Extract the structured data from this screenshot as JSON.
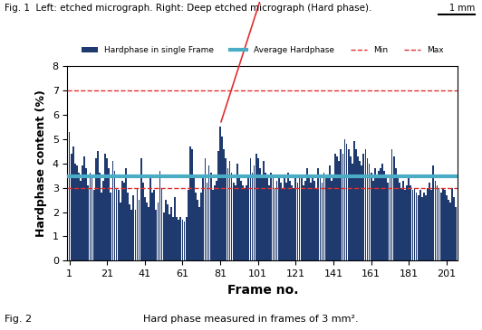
{
  "chart_data": {
    "type": "bar",
    "header": "Fig. 1  Left: etched micrograph. Right: Deep etched micrograph (Hard phase).",
    "scale_label": "1 mm",
    "figure_label": "Fig. 2",
    "caption": "Hard phase measured in frames of 3 mm².",
    "x_label": "Frame no.",
    "y_label": "Hardphase content (%)",
    "x": [
      1,
      2,
      3,
      4,
      5,
      6,
      7,
      8,
      9,
      10,
      11,
      12,
      13,
      14,
      15,
      16,
      17,
      18,
      19,
      20,
      21,
      22,
      23,
      24,
      25,
      26,
      27,
      28,
      29,
      30,
      31,
      32,
      33,
      34,
      35,
      36,
      37,
      38,
      39,
      40,
      41,
      42,
      43,
      44,
      45,
      46,
      47,
      48,
      49,
      50,
      51,
      52,
      53,
      54,
      55,
      56,
      57,
      58,
      59,
      60,
      61,
      62,
      63,
      64,
      65,
      66,
      67,
      68,
      69,
      70,
      71,
      72,
      73,
      74,
      75,
      76,
      77,
      78,
      79,
      80,
      81,
      82,
      83,
      84,
      85,
      86,
      87,
      88,
      89,
      90,
      91,
      92,
      93,
      94,
      95,
      96,
      97,
      98,
      99,
      100,
      101,
      102,
      103,
      104,
      105,
      106,
      107,
      108,
      109,
      110,
      111,
      112,
      113,
      114,
      115,
      116,
      117,
      118,
      119,
      120,
      121,
      122,
      123,
      124,
      125,
      126,
      127,
      128,
      129,
      130,
      131,
      132,
      133,
      134,
      135,
      136,
      137,
      138,
      139,
      140,
      141,
      142,
      143,
      144,
      145,
      146,
      147,
      148,
      149,
      150,
      151,
      152,
      153,
      154,
      155,
      156,
      157,
      158,
      159,
      160,
      161,
      162,
      163,
      164,
      165,
      166,
      167,
      168,
      169,
      170,
      171,
      172,
      173,
      174,
      175,
      176,
      177,
      178,
      179,
      180,
      181,
      182,
      183,
      184,
      185,
      186,
      187,
      188,
      189,
      190,
      191,
      192,
      193,
      194,
      195,
      196,
      197,
      198,
      199,
      200,
      201,
      202,
      203,
      204,
      205,
      206
    ],
    "series": [
      {
        "name": "Hardphase in single Frame",
        "type": "bar",
        "color": "#1f3a6e",
        "values": [
          5.3,
          4.4,
          4.7,
          4.0,
          3.9,
          3.6,
          3.3,
          3.9,
          4.3,
          3.8,
          3.1,
          3.6,
          3.4,
          2.9,
          4.2,
          4.5,
          3.6,
          2.8,
          3.3,
          4.4,
          4.2,
          3.8,
          2.8,
          4.1,
          3.7,
          3.0,
          2.9,
          2.4,
          3.3,
          3.2,
          3.8,
          2.8,
          2.3,
          2.1,
          2.7,
          2.1,
          3.0,
          2.5,
          4.2,
          3.2,
          2.6,
          2.4,
          2.2,
          3.4,
          2.8,
          2.9,
          2.1,
          2.4,
          3.7,
          3.0,
          2.0,
          2.5,
          2.3,
          1.9,
          2.2,
          1.8,
          2.6,
          1.8,
          1.7,
          1.8,
          1.7,
          1.6,
          1.8,
          2.9,
          4.7,
          4.6,
          3.4,
          2.8,
          2.5,
          2.2,
          2.8,
          3.5,
          4.2,
          3.2,
          3.9,
          3.6,
          2.9,
          3.1,
          3.3,
          4.5,
          5.5,
          5.1,
          4.6,
          4.2,
          3.8,
          4.1,
          3.6,
          3.2,
          3.1,
          4.0,
          3.5,
          3.3,
          3.1,
          3.0,
          3.1,
          3.5,
          4.2,
          3.6,
          3.9,
          4.4,
          4.2,
          3.8,
          3.5,
          4.1,
          3.6,
          3.4,
          3.1,
          3.6,
          3.4,
          3.0,
          3.3,
          3.5,
          3.2,
          3.0,
          3.4,
          3.2,
          3.6,
          3.3,
          3.1,
          3.0,
          3.5,
          3.2,
          3.5,
          3.4,
          3.1,
          3.3,
          3.8,
          3.4,
          3.2,
          3.5,
          3.3,
          3.0,
          3.8,
          3.4,
          3.2,
          3.6,
          3.4,
          3.5,
          3.9,
          3.3,
          3.5,
          4.4,
          4.3,
          4.1,
          4.6,
          4.4,
          5.0,
          4.8,
          4.6,
          4.3,
          4.0,
          4.9,
          4.6,
          4.3,
          4.1,
          3.9,
          4.4,
          4.6,
          4.2,
          4.0,
          3.6,
          3.3,
          3.8,
          3.5,
          3.7,
          3.8,
          4.0,
          3.7,
          3.5,
          3.2,
          3.4,
          4.6,
          4.3,
          3.8,
          3.5,
          3.2,
          3.0,
          3.3,
          2.9,
          3.1,
          3.4,
          3.1,
          2.9,
          3.0,
          2.8,
          2.7,
          2.9,
          2.6,
          2.8,
          2.7,
          3.0,
          3.2,
          2.9,
          3.9,
          3.3,
          3.1,
          3.0,
          2.8,
          3.0,
          2.9,
          2.7,
          2.5,
          2.4,
          3.0,
          2.6,
          2.2
        ]
      },
      {
        "name": "Average Hardphase",
        "type": "hline",
        "color": "#4bacc6",
        "line_style": "solid",
        "value": 3.45
      },
      {
        "name": "Min",
        "type": "hline",
        "color": "#e03030",
        "line_style": "dashed",
        "value": 3
      },
      {
        "name": "Max",
        "type": "hline",
        "color": "#e03030",
        "line_style": "dashed",
        "value": 7
      }
    ],
    "annotation": {
      "x": 81,
      "y": 5.6
    },
    "xlim": [
      0,
      207
    ],
    "xticks": [
      1,
      21,
      41,
      61,
      81,
      101,
      121,
      141,
      161,
      181,
      201
    ],
    "ylim": [
      0,
      8
    ],
    "yticks": [
      0,
      1,
      2,
      3,
      4,
      5,
      6,
      7,
      8
    ],
    "grid": false,
    "legend": "upper center"
  }
}
